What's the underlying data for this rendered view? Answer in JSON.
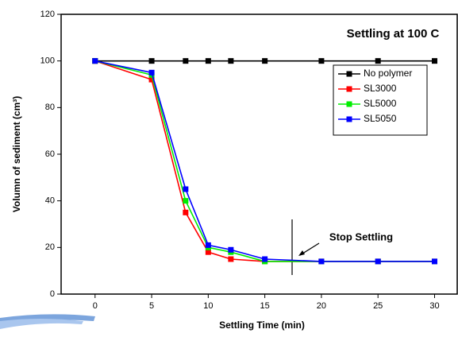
{
  "chart_data": {
    "type": "line",
    "title": "Settling at 100 C",
    "x_label": "Settling Time (min)",
    "y_label": "Volumn of sediment (cm³)",
    "annotation": "Stop Settling",
    "x": [
      0,
      5,
      8,
      10,
      12,
      15,
      20,
      25,
      30
    ],
    "series": [
      {
        "name": "No polymer",
        "color": "#000000",
        "values": [
          100,
          100,
          100,
          100,
          100,
          100,
          100,
          100,
          100
        ]
      },
      {
        "name": "SL3000",
        "color": "#ff0000",
        "values": [
          100,
          92,
          35,
          18,
          15,
          14,
          14,
          14,
          14
        ]
      },
      {
        "name": "SL5000",
        "color": "#00ee00",
        "values": [
          100,
          94,
          40,
          20,
          18,
          14,
          14,
          14,
          14
        ]
      },
      {
        "name": "SL5050",
        "color": "#0000ff",
        "values": [
          100,
          95,
          45,
          21,
          19,
          15,
          14,
          14,
          14
        ]
      }
    ],
    "xlim": [
      -3,
      32
    ],
    "xticks": [
      0,
      5,
      10,
      15,
      20,
      25,
      30
    ],
    "ylim": [
      0,
      120
    ],
    "yticks": [
      0,
      20,
      40,
      60,
      80,
      100,
      120
    ],
    "grid": false,
    "legend": "upper right"
  }
}
